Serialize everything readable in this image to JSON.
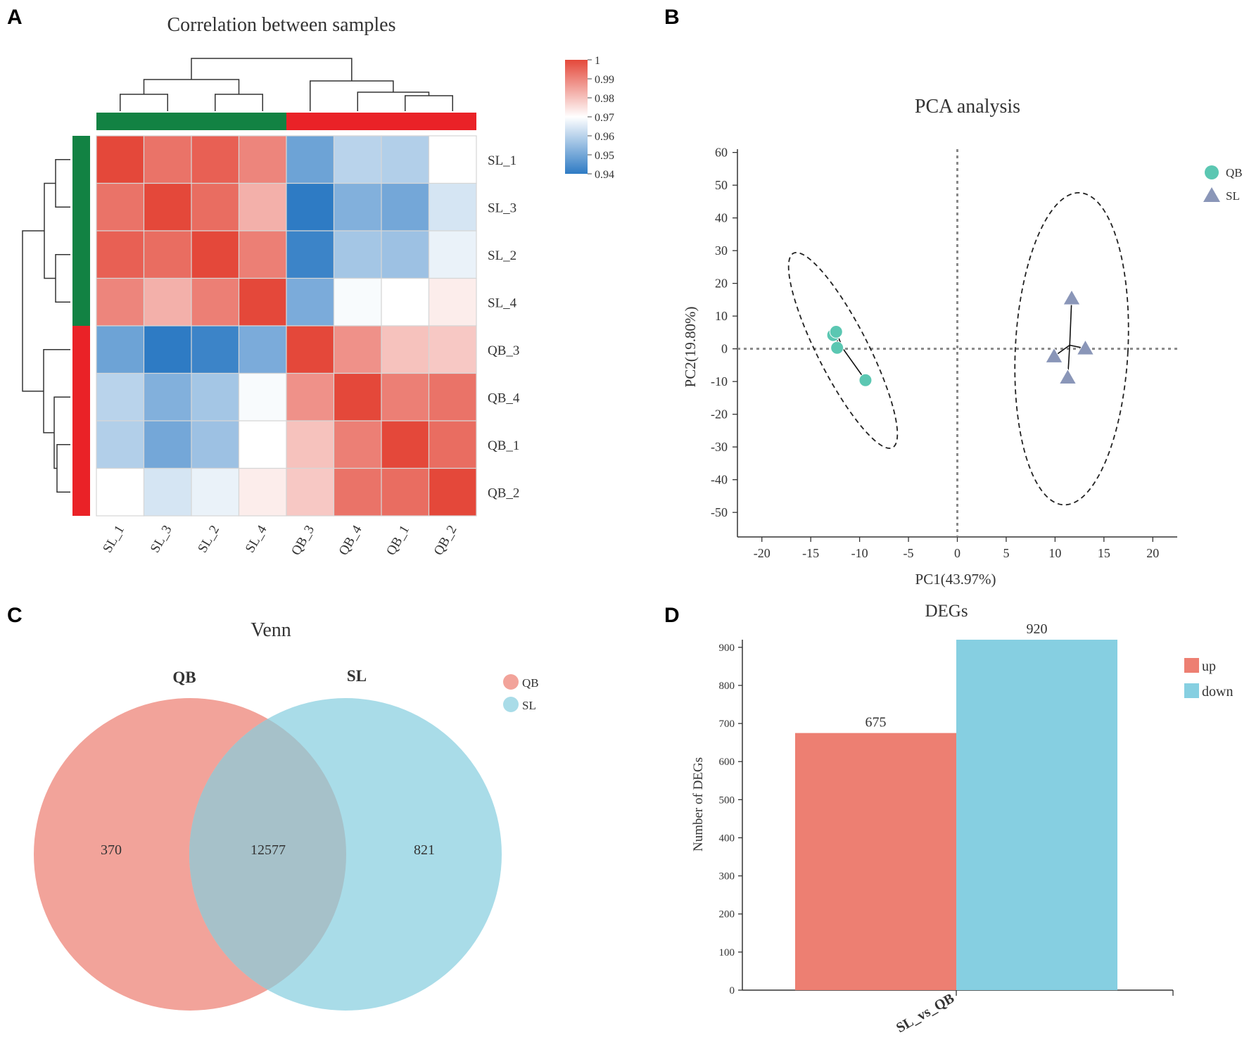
{
  "panels": {
    "a": "A",
    "b": "B",
    "c": "C",
    "d": "D"
  },
  "chart_data": [
    {
      "type": "heatmap",
      "title": "Correlation between samples",
      "rows": [
        "SL_1",
        "SL_3",
        "SL_2",
        "SL_4",
        "QB_3",
        "QB_4",
        "QB_1",
        "QB_2"
      ],
      "cols": [
        "SL_1",
        "SL_3",
        "SL_2",
        "SL_4",
        "QB_3",
        "QB_4",
        "QB_1",
        "QB_2"
      ],
      "values": [
        [
          1.0,
          0.993,
          0.996,
          0.99,
          0.949,
          0.96,
          0.959,
          0.97
        ],
        [
          0.993,
          1.0,
          0.994,
          0.983,
          0.94,
          0.952,
          0.95,
          0.964
        ],
        [
          0.996,
          0.994,
          1.0,
          0.991,
          0.942,
          0.957,
          0.956,
          0.967
        ],
        [
          0.99,
          0.983,
          0.991,
          1.0,
          0.951,
          0.969,
          0.97,
          0.973
        ],
        [
          0.949,
          0.94,
          0.942,
          0.951,
          1.0,
          0.988,
          0.98,
          0.979
        ],
        [
          0.96,
          0.952,
          0.957,
          0.969,
          0.988,
          1.0,
          0.991,
          0.993
        ],
        [
          0.959,
          0.95,
          0.956,
          0.97,
          0.98,
          0.991,
          1.0,
          0.994
        ],
        [
          0.97,
          0.964,
          0.967,
          0.973,
          0.979,
          0.993,
          0.994,
          1.0
        ]
      ],
      "color_scale": {
        "min": 0.94,
        "max": 1,
        "low": "#2e7bc4",
        "mid": "#ffffff",
        "high": "#e4483a",
        "ticks": [
          "1",
          "0.99",
          "0.98",
          "0.97",
          "0.96",
          "0.95",
          "0.94"
        ]
      },
      "groups": [
        {
          "name": "SL",
          "color": "#128243",
          "members": [
            "SL_1",
            "SL_3",
            "SL_2",
            "SL_4"
          ]
        },
        {
          "name": "QB",
          "color": "#ea2227",
          "members": [
            "QB_3",
            "QB_4",
            "QB_1",
            "QB_2"
          ]
        }
      ]
    },
    {
      "type": "scatter",
      "title": "PCA analysis",
      "xlabel": "PC1(43.97%)",
      "ylabel": "PC2(19.80%)",
      "xlim": [
        -22.5,
        22.5
      ],
      "ylim": [
        -57.5,
        61
      ],
      "xticks": [
        -20,
        -15,
        -10,
        -5,
        0,
        5,
        10,
        15,
        20
      ],
      "yticks": [
        60,
        50,
        40,
        30,
        20,
        10,
        0,
        -10,
        -20,
        -30,
        -40,
        -50
      ],
      "series": [
        {
          "name": "QB",
          "color": "#5bc7b2",
          "marker": "circle",
          "points": [
            [
              -12.7,
              4.2
            ],
            [
              -12.4,
              5.2
            ],
            [
              -12.3,
              0.3
            ],
            [
              -9.4,
              -9.6
            ]
          ]
        },
        {
          "name": "SL",
          "color": "#8a96b8",
          "marker": "triangle",
          "points": [
            [
              11.7,
              15.4
            ],
            [
              9.9,
              -2.3
            ],
            [
              13.1,
              0.1
            ],
            [
              11.3,
              -8.8
            ]
          ]
        }
      ]
    },
    {
      "type": "venn",
      "title": "Venn",
      "sets": [
        {
          "name": "QB",
          "color": "#f2a39a",
          "only": "370"
        },
        {
          "name": "SL",
          "color": "#a9dce8",
          "only": "821"
        }
      ],
      "intersection": "12577",
      "intersection_color": "#a6c1c9"
    },
    {
      "type": "bar",
      "title": "DEGs",
      "categories": [
        "SL_vs_QB"
      ],
      "series": [
        {
          "name": "up",
          "color": "#ed7f72",
          "values": [
            675
          ],
          "label": "675"
        },
        {
          "name": "down",
          "color": "#86cfe1",
          "values": [
            920
          ],
          "label": "920"
        }
      ],
      "ylabel": "Number of DEGs",
      "ylim": [
        0,
        920
      ],
      "yticks": [
        0,
        100,
        200,
        300,
        400,
        500,
        600,
        700,
        800,
        900
      ]
    }
  ]
}
